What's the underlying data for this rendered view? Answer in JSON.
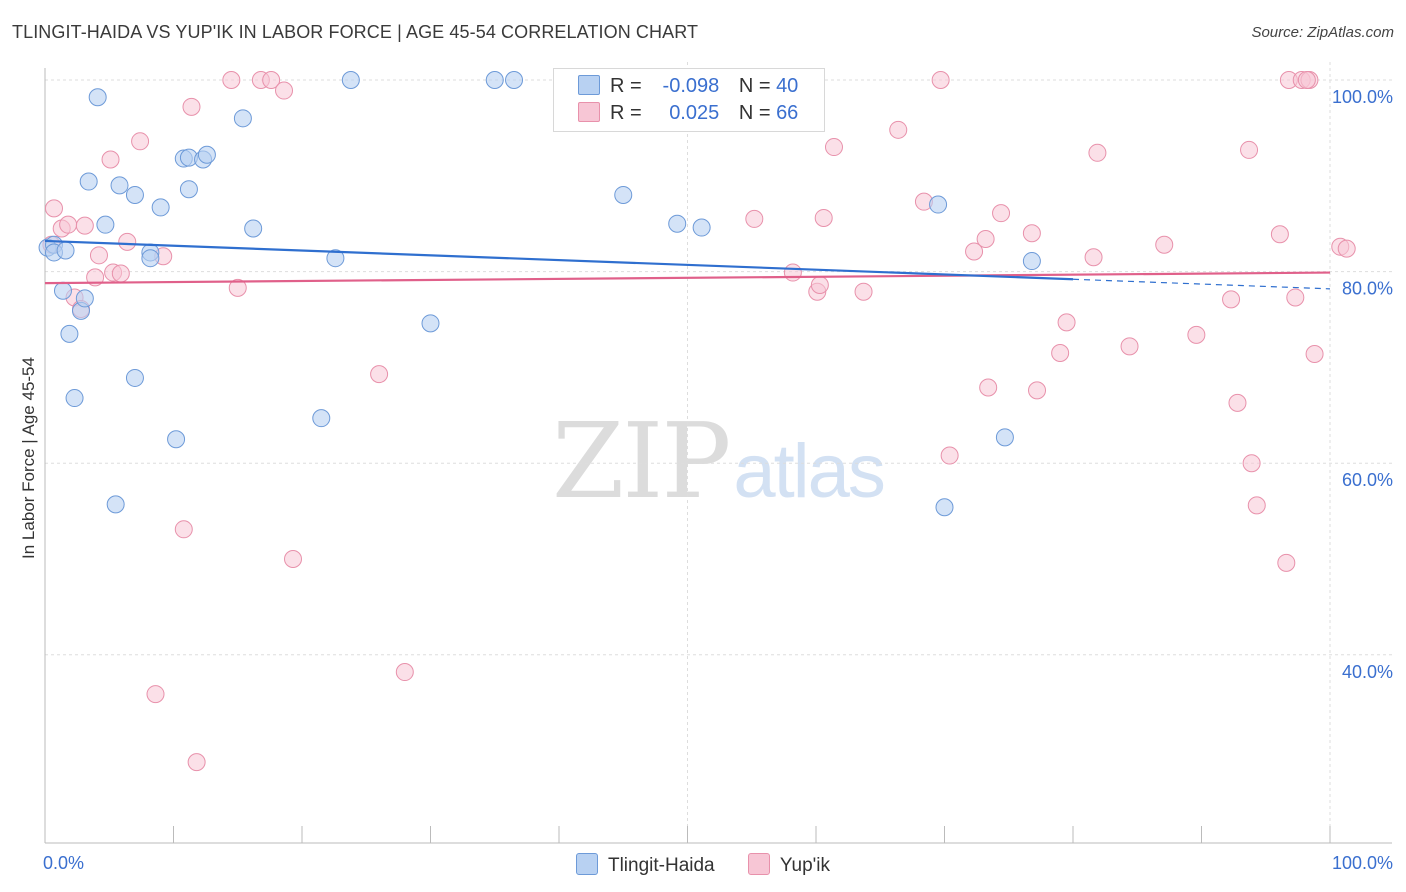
{
  "title": "TLINGIT-HAIDA VS YUP'IK IN LABOR FORCE | AGE 45-54 CORRELATION CHART",
  "source": "Source: ZipAtlas.com",
  "watermark": {
    "zip": "ZIP",
    "atlas": "atlas"
  },
  "legend": {
    "rows": [
      {
        "r_label": "R =",
        "r_value": "-0.098",
        "n_label": "N =",
        "n_value": "40"
      },
      {
        "r_label": "R =",
        "r_value": "0.025",
        "n_label": "N =",
        "n_value": "66"
      }
    ]
  },
  "bottom_legend": [
    "Tlingit-Haida",
    "Yup'ik"
  ],
  "colors": {
    "blue_fill": "#b8d1f2",
    "blue_stroke": "#6d9ad8",
    "blue_line": "#2f6fcf",
    "pink_fill": "#f7c6d5",
    "pink_stroke": "#e891ab",
    "pink_line": "#e0608a",
    "axis_label": "#3a6fcf",
    "grid": "#dddddd"
  },
  "chart_data": {
    "type": "scatter",
    "title": "TLINGIT-HAIDA VS YUP'IK IN LABOR FORCE | AGE 45-54 CORRELATION CHART",
    "xlabel": "",
    "ylabel": "In Labor Force | Age 45-54",
    "xlim": [
      0,
      100
    ],
    "ylim": [
      21,
      102
    ],
    "x_tick_labels": [
      {
        "value": 0,
        "label": "0.0%"
      },
      {
        "value": 100,
        "label": "100.0%"
      }
    ],
    "y_tick_labels": [
      {
        "value": 100,
        "label": "100.0%"
      },
      {
        "value": 80,
        "label": "80.0%"
      },
      {
        "value": 60,
        "label": "60.0%"
      },
      {
        "value": 40,
        "label": "40.0%"
      }
    ],
    "series": [
      {
        "name": "Tlingit-Haida",
        "r": -0.098,
        "n": 40,
        "trend": {
          "x": [
            0,
            80
          ],
          "y": [
            83.2,
            79.2
          ]
        },
        "trend_dashed": {
          "x": [
            80,
            100
          ],
          "y": [
            79.2,
            78.2
          ]
        },
        "points": [
          [
            0.2,
            82.5
          ],
          [
            0.7,
            82.8
          ],
          [
            1.4,
            78
          ],
          [
            1.9,
            73.5
          ],
          [
            2.3,
            66.8
          ],
          [
            2.8,
            75.9
          ],
          [
            3.1,
            77.2
          ],
          [
            3.4,
            89.4
          ],
          [
            4.1,
            98.2
          ],
          [
            4.7,
            84.9
          ],
          [
            5.5,
            55.7
          ],
          [
            5.8,
            89
          ],
          [
            7,
            88
          ],
          [
            7,
            68.9
          ],
          [
            8.2,
            82
          ],
          [
            8.2,
            81.4
          ],
          [
            9,
            86.7
          ],
          [
            10.2,
            62.5
          ],
          [
            10.8,
            91.8
          ],
          [
            11.2,
            91.9
          ],
          [
            11.2,
            88.6
          ],
          [
            12.3,
            91.7
          ],
          [
            12.6,
            92.2
          ],
          [
            15.4,
            96
          ],
          [
            16.2,
            84.5
          ],
          [
            21.5,
            64.7
          ],
          [
            22.6,
            81.4
          ],
          [
            23.8,
            100
          ],
          [
            30,
            74.6
          ],
          [
            35,
            100
          ],
          [
            36.5,
            100
          ],
          [
            45,
            88
          ],
          [
            49.2,
            85
          ],
          [
            51.1,
            84.6
          ],
          [
            69.5,
            87
          ],
          [
            70,
            55.4
          ],
          [
            74.7,
            62.7
          ],
          [
            76.8,
            81.1
          ],
          [
            0.7,
            82
          ],
          [
            1.6,
            82.2
          ]
        ]
      },
      {
        "name": "Yup'ik",
        "r": 0.025,
        "n": 66,
        "trend": {
          "x": [
            0,
            100
          ],
          "y": [
            78.8,
            79.9
          ]
        },
        "points": [
          [
            0.5,
            82.8
          ],
          [
            0.7,
            86.6
          ],
          [
            1.3,
            84.5
          ],
          [
            1.8,
            84.9
          ],
          [
            2.3,
            77.3
          ],
          [
            2.8,
            76.1
          ],
          [
            3.1,
            84.8
          ],
          [
            3.9,
            79.4
          ],
          [
            4.2,
            81.7
          ],
          [
            5.1,
            91.7
          ],
          [
            5.3,
            79.9
          ],
          [
            5.9,
            79.8
          ],
          [
            6.4,
            83.1
          ],
          [
            7.4,
            93.6
          ],
          [
            8.6,
            35.9
          ],
          [
            9.2,
            81.6
          ],
          [
            10.8,
            53.1
          ],
          [
            11.4,
            97.2
          ],
          [
            11.8,
            28.8
          ],
          [
            14.5,
            100
          ],
          [
            15,
            78.3
          ],
          [
            16.8,
            100
          ],
          [
            17.6,
            100
          ],
          [
            18.6,
            98.9
          ],
          [
            19.3,
            50
          ],
          [
            26,
            69.3
          ],
          [
            28,
            38.2
          ],
          [
            55.2,
            85.5
          ],
          [
            58.2,
            79.9
          ],
          [
            60.1,
            77.9
          ],
          [
            60.3,
            78.6
          ],
          [
            60.6,
            85.6
          ],
          [
            61.4,
            93
          ],
          [
            63.7,
            77.9
          ],
          [
            66.4,
            94.8
          ],
          [
            68.4,
            87.3
          ],
          [
            69.7,
            100
          ],
          [
            70.4,
            60.8
          ],
          [
            72.3,
            82.1
          ],
          [
            73.2,
            83.4
          ],
          [
            73.4,
            67.9
          ],
          [
            74.4,
            86.1
          ],
          [
            76.8,
            84
          ],
          [
            77.2,
            67.6
          ],
          [
            79,
            71.5
          ],
          [
            79.5,
            74.7
          ],
          [
            81.6,
            81.5
          ],
          [
            81.9,
            92.4
          ],
          [
            84.4,
            72.2
          ],
          [
            87.1,
            82.8
          ],
          [
            89.6,
            73.4
          ],
          [
            92.3,
            77.1
          ],
          [
            92.8,
            66.3
          ],
          [
            93.7,
            92.7
          ],
          [
            93.9,
            60
          ],
          [
            94.3,
            55.6
          ],
          [
            96.1,
            83.9
          ],
          [
            96.6,
            49.6
          ],
          [
            96.8,
            100
          ],
          [
            97.3,
            77.3
          ],
          [
            97.8,
            100
          ],
          [
            98.4,
            100
          ],
          [
            98.8,
            71.4
          ],
          [
            100.8,
            82.6
          ],
          [
            101.3,
            82.4
          ],
          [
            98.2,
            100
          ]
        ]
      }
    ]
  }
}
